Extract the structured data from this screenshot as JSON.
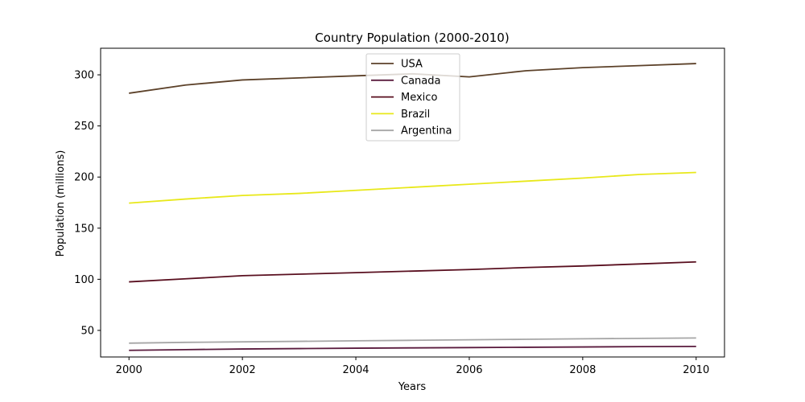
{
  "chart_data": {
    "type": "line",
    "title": "Country Population (2000-2010)",
    "xlabel": "Years",
    "ylabel": "Population (millions)",
    "x": [
      2000,
      2001,
      2002,
      2003,
      2004,
      2005,
      2006,
      2007,
      2008,
      2009,
      2010
    ],
    "xlim": [
      1999.5,
      2010.5
    ],
    "ylim": [
      24,
      326
    ],
    "xticks": [
      2000,
      2002,
      2004,
      2006,
      2008,
      2010
    ],
    "yticks": [
      50,
      100,
      150,
      200,
      250,
      300
    ],
    "grid": false,
    "legend_position": "upper-center",
    "series": [
      {
        "name": "USA",
        "color": "#5c4129",
        "values": [
          282,
          290,
          295,
          297,
          299,
          301,
          298,
          304,
          307,
          309,
          311
        ]
      },
      {
        "name": "Canada",
        "color": "#5a1b3e",
        "values": [
          30.5,
          31.2,
          31.8,
          32.2,
          32.6,
          32.9,
          33.2,
          33.5,
          33.8,
          34.1,
          34.3
        ]
      },
      {
        "name": "Mexico",
        "color": "#590f1f",
        "values": [
          97.5,
          100.5,
          103.5,
          105,
          106.5,
          108,
          109.5,
          111.5,
          113,
          115,
          117
        ]
      },
      {
        "name": "Brazil",
        "color": "#e8e81a",
        "values": [
          174.5,
          178.5,
          182,
          184,
          187,
          190,
          193,
          196,
          199,
          202.5,
          204.5
        ]
      },
      {
        "name": "Argentina",
        "color": "#a6a6a6",
        "values": [
          37.5,
          38.3,
          38.8,
          39.3,
          39.8,
          40.3,
          40.8,
          41.3,
          41.8,
          42.2,
          42.6
        ]
      }
    ]
  }
}
